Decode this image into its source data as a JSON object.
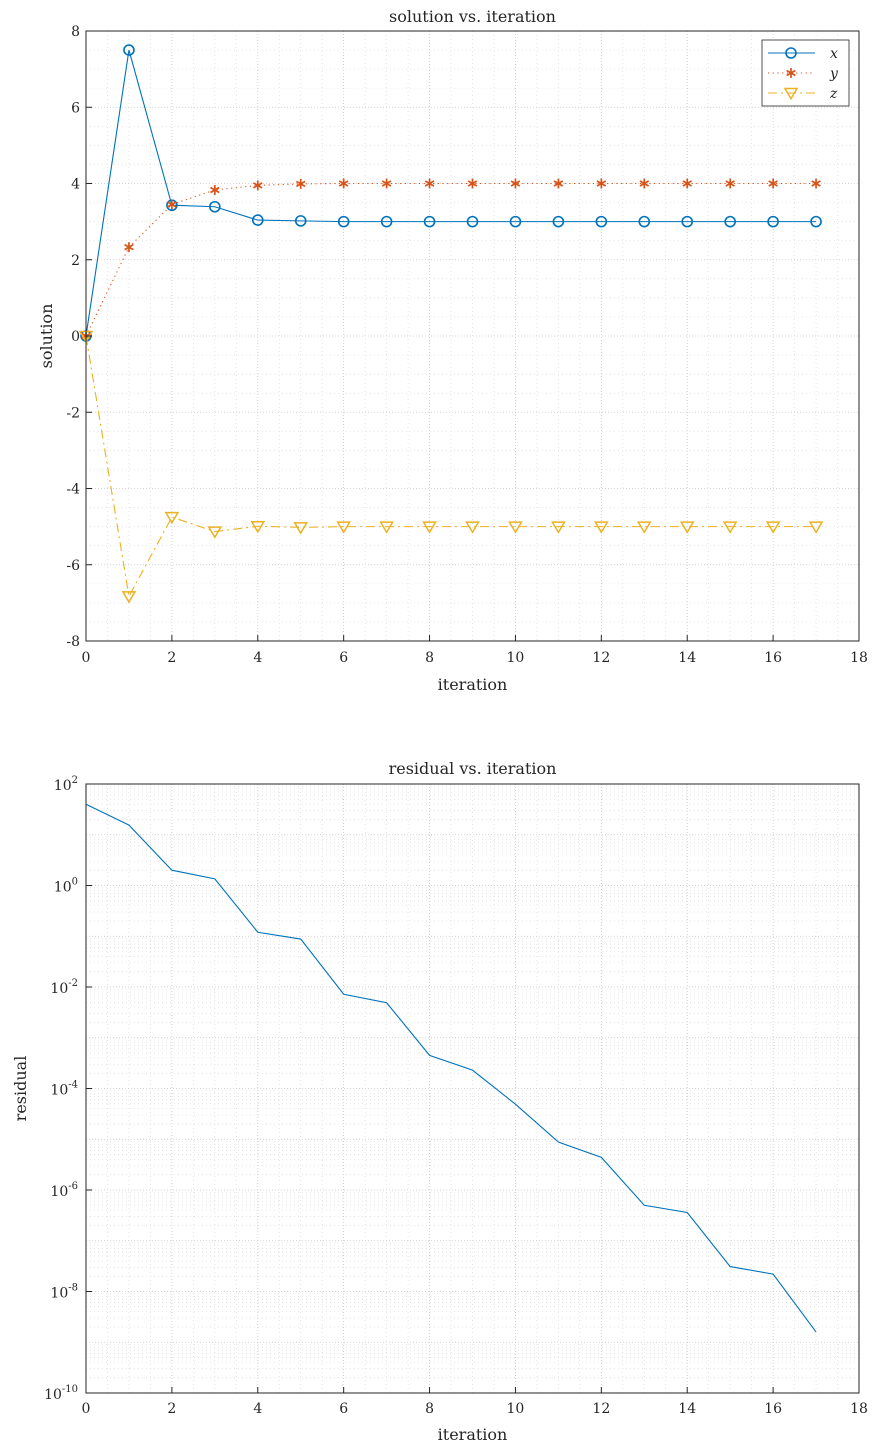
{
  "chart_data": [
    {
      "type": "line",
      "title": "solution vs. iteration",
      "xlabel": "iteration",
      "ylabel": "solution",
      "xlim": [
        0,
        18
      ],
      "ylim": [
        -8,
        8
      ],
      "xticks": [
        "0",
        "2",
        "4",
        "6",
        "8",
        "10",
        "12",
        "14",
        "16",
        "18"
      ],
      "yticks": [
        "-8",
        "-6",
        "-4",
        "-2",
        "0",
        "2",
        "4",
        "6",
        "8"
      ],
      "grid": true,
      "legend": "top-right",
      "x": [
        0,
        1,
        2,
        3,
        4,
        5,
        6,
        7,
        8,
        9,
        10,
        11,
        12,
        13,
        14,
        15,
        16,
        17
      ],
      "series": [
        {
          "name": "x",
          "color": "#0072BD",
          "line": "solid",
          "marker": "circle",
          "values": [
            0,
            7.5,
            3.43,
            3.39,
            3.04,
            3.02,
            3.0,
            3.0,
            3.0,
            3.0,
            3.0,
            3.0,
            3.0,
            3.0,
            3.0,
            3.0,
            3.0,
            3.0
          ]
        },
        {
          "name": "y",
          "color": "#D95319",
          "line": "dotted",
          "marker": "asterisk",
          "values": [
            0,
            2.33,
            3.45,
            3.83,
            3.95,
            3.99,
            4.0,
            4.0,
            4.0,
            4.0,
            4.0,
            4.0,
            4.0,
            4.0,
            4.0,
            4.0,
            4.0,
            4.0
          ]
        },
        {
          "name": "z",
          "color": "#EDB120",
          "line": "dashdot",
          "marker": "triangle-down",
          "values": [
            0,
            -6.83,
            -4.75,
            -5.13,
            -4.99,
            -5.02,
            -5.0,
            -5.0,
            -5.0,
            -5.0,
            -5.0,
            -5.0,
            -5.0,
            -5.0,
            -5.0,
            -5.0,
            -5.0,
            -5.0
          ]
        }
      ]
    },
    {
      "type": "line",
      "title": "residual vs. iteration",
      "xlabel": "iteration",
      "ylabel": "residual",
      "yscale": "log",
      "xlim": [
        0,
        18
      ],
      "ylim": [
        1e-10,
        100
      ],
      "xticks": [
        "0",
        "2",
        "4",
        "6",
        "8",
        "10",
        "12",
        "14",
        "16",
        "18"
      ],
      "ytick_exponents": [
        "2",
        "0",
        "-2",
        "-4",
        "-6",
        "-8",
        "-10"
      ],
      "ytick_base": "10",
      "grid": true,
      "x": [
        0,
        1,
        2,
        3,
        4,
        5,
        6,
        7,
        8,
        9,
        10,
        11,
        12,
        13,
        14,
        15,
        16,
        17
      ],
      "series": [
        {
          "color": "#0072BD",
          "line": "solid",
          "values": [
            40,
            15.5,
            2.0,
            1.35,
            0.12,
            0.088,
            0.0072,
            0.0049,
            0.00045,
            0.00023,
            4.9e-05,
            8.8e-06,
            4.4e-06,
            5e-07,
            3.6e-07,
            3.1e-08,
            2.2e-08,
            1.6e-09
          ]
        }
      ]
    }
  ]
}
